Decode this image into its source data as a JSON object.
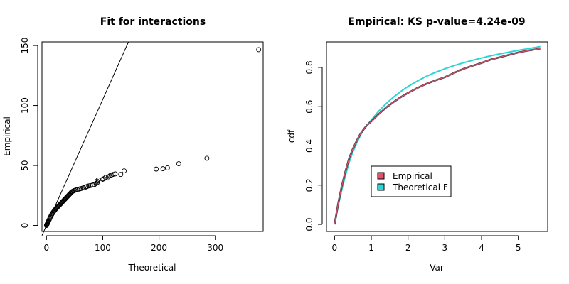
{
  "chart_data": [
    {
      "type": "scatter",
      "title": "Fit for interactions",
      "xlabel": "Theoretical",
      "ylabel": "Empirical",
      "xlim": [
        -8,
        385
      ],
      "ylim": [
        -5,
        153
      ],
      "xticks": [
        0,
        100,
        200,
        300
      ],
      "yticks": [
        0,
        50,
        100,
        150
      ],
      "grid": false,
      "reference_line": {
        "slope": 1.05,
        "intercept": 0
      },
      "points": {
        "x": [
          0,
          0.3,
          0.6,
          1,
          1.5,
          2,
          2.5,
          3,
          3.5,
          4,
          5,
          6,
          7,
          8,
          9,
          10,
          11,
          12,
          13,
          14,
          15,
          16,
          17,
          18,
          19,
          20,
          21,
          22,
          23,
          24,
          25,
          26,
          27,
          28,
          29,
          30,
          31,
          32,
          33,
          34,
          35,
          36,
          37,
          38,
          39,
          40,
          41,
          42,
          43,
          44,
          45,
          46,
          48,
          50,
          52,
          55,
          58,
          60,
          63,
          66,
          70,
          72,
          75,
          78,
          82,
          85,
          88,
          90,
          90,
          92,
          100,
          102,
          105,
          110,
          113,
          115,
          118,
          122,
          132,
          138,
          195,
          207,
          215,
          235,
          285,
          377
        ],
        "y": [
          0,
          0.3,
          0.6,
          1,
          1.5,
          2,
          2.5,
          3,
          3.5,
          4,
          5,
          6,
          7,
          8,
          8.8,
          9.6,
          10.3,
          11,
          11.7,
          12.3,
          12.9,
          13.5,
          14,
          14.5,
          15,
          15.5,
          16,
          16.5,
          17,
          17.5,
          18,
          18.5,
          19,
          19.5,
          20,
          20.5,
          21,
          21.5,
          22,
          22.5,
          23,
          23.5,
          24,
          24.5,
          25,
          25.5,
          26,
          26.5,
          27,
          27.5,
          28,
          28.3,
          28.8,
          29.2,
          29.6,
          30,
          30.3,
          30.6,
          31,
          31.4,
          32,
          32.5,
          33,
          33.3,
          33.7,
          34,
          35,
          35.5,
          37,
          38,
          38.5,
          39,
          40,
          40.5,
          41.5,
          42,
          42.5,
          43,
          42.5,
          45.5,
          47,
          47.3,
          48,
          51.5,
          56,
          146.5
        ]
      }
    },
    {
      "type": "line",
      "title": "Empirical: KS p-value=4.24e-09",
      "xlabel": "Var",
      "ylabel": "cdf",
      "xlim": [
        -0.22,
        5.8
      ],
      "ylim": [
        -0.036,
        0.93
      ],
      "xticks": [
        0,
        1,
        2,
        3,
        4,
        5
      ],
      "yticks": [
        0.0,
        0.2,
        0.4,
        0.6,
        0.8
      ],
      "grid": false,
      "legend": "center",
      "series": [
        {
          "name": "Empirical",
          "color": "#df536b",
          "x": [
            0,
            0.1,
            0.2,
            0.3,
            0.4,
            0.5,
            0.6,
            0.7,
            0.8,
            0.9,
            1.0,
            1.2,
            1.4,
            1.6,
            1.8,
            2.0,
            2.25,
            2.5,
            2.75,
            3.0,
            3.25,
            3.5,
            3.75,
            4.0,
            4.25,
            4.5,
            4.75,
            5.0,
            5.25,
            5.6
          ],
          "values": [
            0,
            0.107,
            0.198,
            0.273,
            0.338,
            0.386,
            0.425,
            0.46,
            0.487,
            0.509,
            0.525,
            0.562,
            0.595,
            0.623,
            0.648,
            0.67,
            0.695,
            0.716,
            0.734,
            0.75,
            0.772,
            0.792,
            0.808,
            0.823,
            0.84,
            0.852,
            0.864,
            0.876,
            0.885,
            0.896
          ]
        },
        {
          "name": "Theoretical F",
          "color": "#2ad5d5",
          "x": [
            0,
            0.1,
            0.2,
            0.3,
            0.4,
            0.5,
            0.6,
            0.7,
            0.8,
            0.9,
            1.0,
            1.2,
            1.4,
            1.6,
            1.8,
            2.0,
            2.25,
            2.5,
            2.75,
            3.0,
            3.25,
            3.5,
            3.75,
            4.0,
            4.25,
            4.5,
            4.75,
            5.0,
            5.25,
            5.6
          ],
          "values": [
            0,
            0.095,
            0.178,
            0.252,
            0.317,
            0.37,
            0.413,
            0.452,
            0.483,
            0.509,
            0.532,
            0.577,
            0.615,
            0.648,
            0.677,
            0.703,
            0.73,
            0.755,
            0.775,
            0.793,
            0.809,
            0.823,
            0.836,
            0.848,
            0.859,
            0.869,
            0.878,
            0.887,
            0.895,
            0.906
          ]
        }
      ]
    }
  ]
}
